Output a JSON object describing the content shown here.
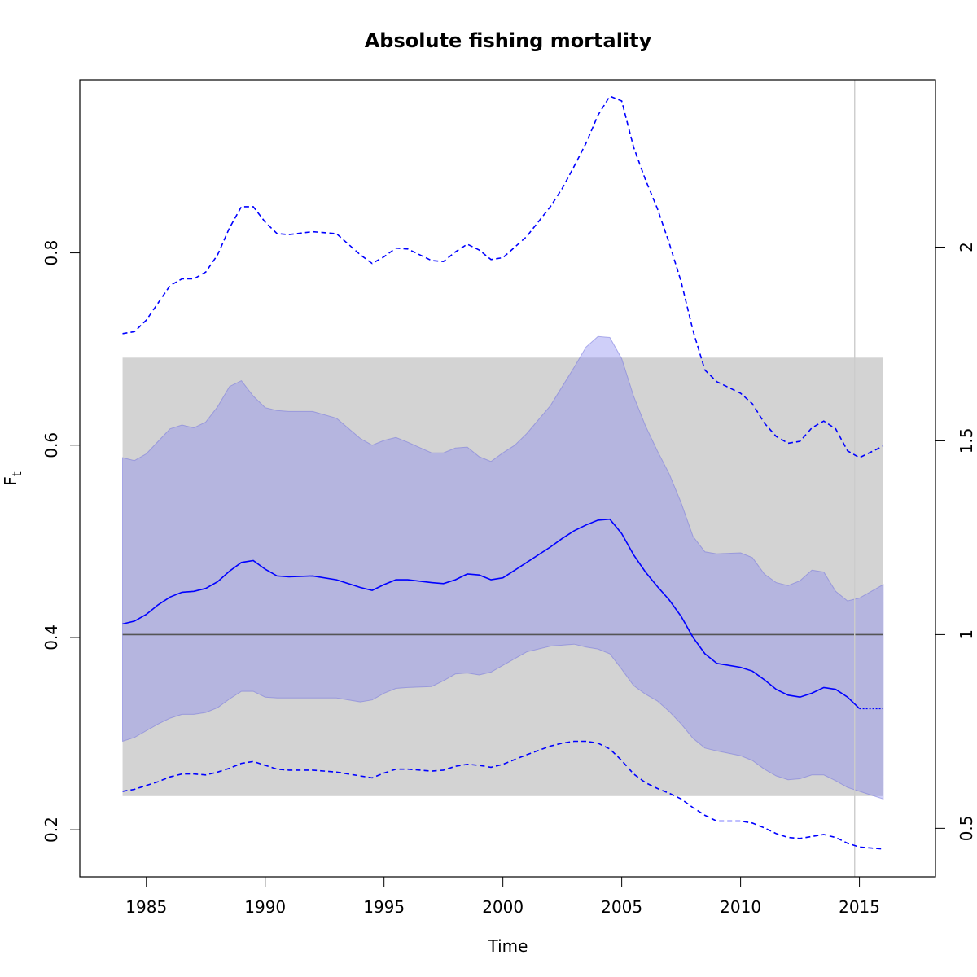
{
  "chart_data": {
    "type": "line",
    "title": "Absolute fishing mortality",
    "xlabel": "Time",
    "ylabel": "F",
    "ylabel_subscript": "t",
    "xlim": [
      1982.2,
      2018.2
    ],
    "ylim": [
      0.151,
      0.98
    ],
    "right_axis": {
      "ticks": [
        0.5,
        1,
        1.5,
        2
      ],
      "tick_labels": [
        "0.5",
        "1",
        "1.5",
        "2"
      ],
      "reference_value": 0.403
    },
    "x_ticks": [
      1985,
      1990,
      1995,
      2000,
      2005,
      2010,
      2015
    ],
    "x_tick_labels": [
      "1985",
      "1990",
      "1995",
      "2000",
      "2005",
      "2010",
      "2015"
    ],
    "y_ticks": [
      0.2,
      0.4,
      0.6,
      0.8
    ],
    "y_tick_labels": [
      "0.2",
      "0.4",
      "0.6",
      "0.8"
    ],
    "grey_band": {
      "x": [
        1984.0,
        2016.0
      ],
      "y": [
        0.235,
        0.691
      ],
      "color": "#d3d3d3"
    },
    "reference_line": {
      "y": 0.403,
      "x": [
        1984.0,
        2016.0
      ],
      "color": "#555555"
    },
    "vline": {
      "x": 2014.8,
      "color": "#cccccc"
    },
    "colors": {
      "series": "#0000ff",
      "ci_fill": "#b0b0f0",
      "band": "#d3d3d3"
    },
    "series": [
      {
        "role": "estimate",
        "line": "solid",
        "x": [
          1984,
          1984.5,
          1985,
          1985.5,
          1986,
          1986.5,
          1987,
          1987.5,
          1988,
          1988.5,
          1989,
          1989.5,
          1990,
          1990.5,
          1991,
          1992,
          1993,
          1994,
          1994.5,
          1995,
          1995.5,
          1996,
          1997,
          1997.5,
          1998,
          1998.5,
          1999,
          1999.5,
          2000,
          2000.5,
          2001,
          2002,
          2002.5,
          2003,
          2003.5,
          2004,
          2004.5,
          2005,
          2005.5,
          2006,
          2006.5,
          2007,
          2007.5,
          2008,
          2008.5,
          2009,
          2010,
          2010.5,
          2011,
          2011.5,
          2012,
          2012.5,
          2013,
          2013.5,
          2014,
          2014.5,
          2015
        ],
        "y": [
          0.414,
          0.417,
          0.424,
          0.434,
          0.442,
          0.447,
          0.448,
          0.451,
          0.458,
          0.469,
          0.478,
          0.48,
          0.471,
          0.464,
          0.463,
          0.464,
          0.46,
          0.452,
          0.449,
          0.455,
          0.46,
          0.46,
          0.457,
          0.456,
          0.46,
          0.466,
          0.465,
          0.46,
          0.462,
          0.47,
          0.478,
          0.494,
          0.503,
          0.511,
          0.517,
          0.522,
          0.523,
          0.508,
          0.486,
          0.468,
          0.453,
          0.439,
          0.422,
          0.4,
          0.383,
          0.373,
          0.369,
          0.365,
          0.356,
          0.346,
          0.34,
          0.338,
          0.342,
          0.348,
          0.346,
          0.338,
          0.326
        ]
      },
      {
        "role": "projection",
        "line": "dotted",
        "x": [
          2015,
          2016
        ],
        "y": [
          0.326,
          0.326
        ]
      },
      {
        "role": "ci_upper",
        "line": "dashed",
        "x": [
          1984,
          1984.5,
          1985,
          1985.5,
          1986,
          1986.5,
          1987,
          1987.5,
          1988,
          1988.5,
          1989,
          1989.5,
          1990,
          1990.5,
          1991,
          1992,
          1993,
          1994,
          1994.5,
          1995,
          1995.5,
          1996,
          1997,
          1997.5,
          1998,
          1998.5,
          1999,
          1999.5,
          2000,
          2000.5,
          2001,
          2002,
          2002.5,
          2003,
          2003.5,
          2004,
          2004.5,
          2005,
          2005.5,
          2006,
          2006.5,
          2007,
          2007.5,
          2008,
          2008.5,
          2009,
          2010,
          2010.5,
          2011,
          2011.5,
          2012,
          2012.5,
          2013,
          2013.5,
          2014,
          2014.5,
          2015,
          2015.5,
          2016
        ],
        "y": [
          0.716,
          0.718,
          0.73,
          0.748,
          0.766,
          0.773,
          0.773,
          0.78,
          0.798,
          0.826,
          0.848,
          0.848,
          0.832,
          0.82,
          0.819,
          0.822,
          0.82,
          0.798,
          0.789,
          0.796,
          0.805,
          0.804,
          0.792,
          0.791,
          0.801,
          0.809,
          0.803,
          0.793,
          0.795,
          0.806,
          0.817,
          0.848,
          0.867,
          0.89,
          0.914,
          0.943,
          0.963,
          0.958,
          0.91,
          0.876,
          0.846,
          0.81,
          0.77,
          0.719,
          0.678,
          0.666,
          0.654,
          0.643,
          0.623,
          0.609,
          0.602,
          0.604,
          0.618,
          0.625,
          0.617,
          0.594,
          0.587,
          0.593,
          0.599
        ]
      },
      {
        "role": "ci_lower",
        "line": "dashed",
        "x": [
          1984,
          1984.5,
          1985,
          1985.5,
          1986,
          1986.5,
          1987,
          1987.5,
          1988,
          1988.5,
          1989,
          1989.5,
          1990,
          1990.5,
          1991,
          1992,
          1993,
          1994,
          1994.5,
          1995,
          1995.5,
          1996,
          1997,
          1997.5,
          1998,
          1998.5,
          1999,
          1999.5,
          2000,
          2000.5,
          2001,
          2002,
          2002.5,
          2003,
          2003.5,
          2004,
          2004.5,
          2005,
          2005.5,
          2006,
          2006.5,
          2007,
          2007.5,
          2008,
          2008.5,
          2009,
          2010,
          2010.5,
          2011,
          2011.5,
          2012,
          2012.5,
          2013,
          2013.5,
          2014,
          2014.5,
          2015,
          2015.5,
          2016
        ],
        "y": [
          0.24,
          0.242,
          0.246,
          0.25,
          0.255,
          0.258,
          0.258,
          0.257,
          0.26,
          0.264,
          0.269,
          0.271,
          0.267,
          0.263,
          0.262,
          0.262,
          0.26,
          0.256,
          0.254,
          0.259,
          0.263,
          0.263,
          0.261,
          0.262,
          0.266,
          0.268,
          0.267,
          0.265,
          0.268,
          0.273,
          0.278,
          0.287,
          0.29,
          0.292,
          0.292,
          0.29,
          0.284,
          0.272,
          0.258,
          0.249,
          0.243,
          0.238,
          0.232,
          0.223,
          0.215,
          0.209,
          0.209,
          0.207,
          0.202,
          0.196,
          0.192,
          0.191,
          0.193,
          0.195,
          0.192,
          0.186,
          0.182,
          0.181,
          0.18
        ]
      },
      {
        "role": "ci_band_upper",
        "line": "fill",
        "x": [
          1984,
          1984.5,
          1985,
          1985.5,
          1986,
          1986.5,
          1987,
          1987.5,
          1988,
          1988.5,
          1989,
          1989.5,
          1990,
          1990.5,
          1991,
          1992,
          1993,
          1994,
          1994.5,
          1995,
          1995.5,
          1996,
          1997,
          1997.5,
          1998,
          1998.5,
          1999,
          1999.5,
          2000,
          2000.5,
          2001,
          2002,
          2002.5,
          2003,
          2003.5,
          2004,
          2004.5,
          2005,
          2005.5,
          2006,
          2006.5,
          2007,
          2007.5,
          2008,
          2008.5,
          2009,
          2010,
          2010.5,
          2011,
          2011.5,
          2012,
          2012.5,
          2013,
          2013.5,
          2014,
          2014.5,
          2015,
          2015.5,
          2016
        ],
        "y": [
          0.587,
          0.584,
          0.591,
          0.604,
          0.617,
          0.621,
          0.618,
          0.624,
          0.64,
          0.661,
          0.667,
          0.651,
          0.639,
          0.636,
          0.635,
          0.635,
          0.628,
          0.607,
          0.6,
          0.605,
          0.608,
          0.603,
          0.592,
          0.592,
          0.597,
          0.598,
          0.588,
          0.583,
          0.592,
          0.6,
          0.612,
          0.641,
          0.661,
          0.681,
          0.702,
          0.713,
          0.712,
          0.69,
          0.651,
          0.62,
          0.594,
          0.57,
          0.54,
          0.505,
          0.489,
          0.487,
          0.488,
          0.483,
          0.466,
          0.457,
          0.454,
          0.459,
          0.47,
          0.468,
          0.448,
          0.438,
          0.441,
          0.448,
          0.455
        ]
      },
      {
        "role": "ci_band_lower",
        "line": "fill",
        "x": [
          1984,
          1984.5,
          1985,
          1985.5,
          1986,
          1986.5,
          1987,
          1987.5,
          1988,
          1988.5,
          1989,
          1989.5,
          1990,
          1990.5,
          1991,
          1992,
          1993,
          1994,
          1994.5,
          1995,
          1995.5,
          1996,
          1997,
          1997.5,
          1998,
          1998.5,
          1999,
          1999.5,
          2000,
          2000.5,
          2001,
          2002,
          2002.5,
          2003,
          2003.5,
          2004,
          2004.5,
          2005,
          2005.5,
          2006,
          2006.5,
          2007,
          2007.5,
          2008,
          2008.5,
          2009,
          2010,
          2010.5,
          2011,
          2011.5,
          2012,
          2012.5,
          2013,
          2013.5,
          2014,
          2014.5,
          2015,
          2015.5,
          2016
        ],
        "y": [
          0.292,
          0.296,
          0.303,
          0.31,
          0.316,
          0.32,
          0.32,
          0.322,
          0.327,
          0.336,
          0.344,
          0.344,
          0.338,
          0.337,
          0.337,
          0.337,
          0.337,
          0.333,
          0.335,
          0.342,
          0.347,
          0.348,
          0.349,
          0.355,
          0.362,
          0.363,
          0.361,
          0.364,
          0.371,
          0.378,
          0.385,
          0.391,
          0.392,
          0.393,
          0.39,
          0.388,
          0.383,
          0.367,
          0.35,
          0.341,
          0.334,
          0.323,
          0.31,
          0.295,
          0.285,
          0.282,
          0.277,
          0.272,
          0.263,
          0.256,
          0.252,
          0.253,
          0.257,
          0.257,
          0.251,
          0.244,
          0.24,
          0.236,
          0.232
        ]
      }
    ]
  }
}
